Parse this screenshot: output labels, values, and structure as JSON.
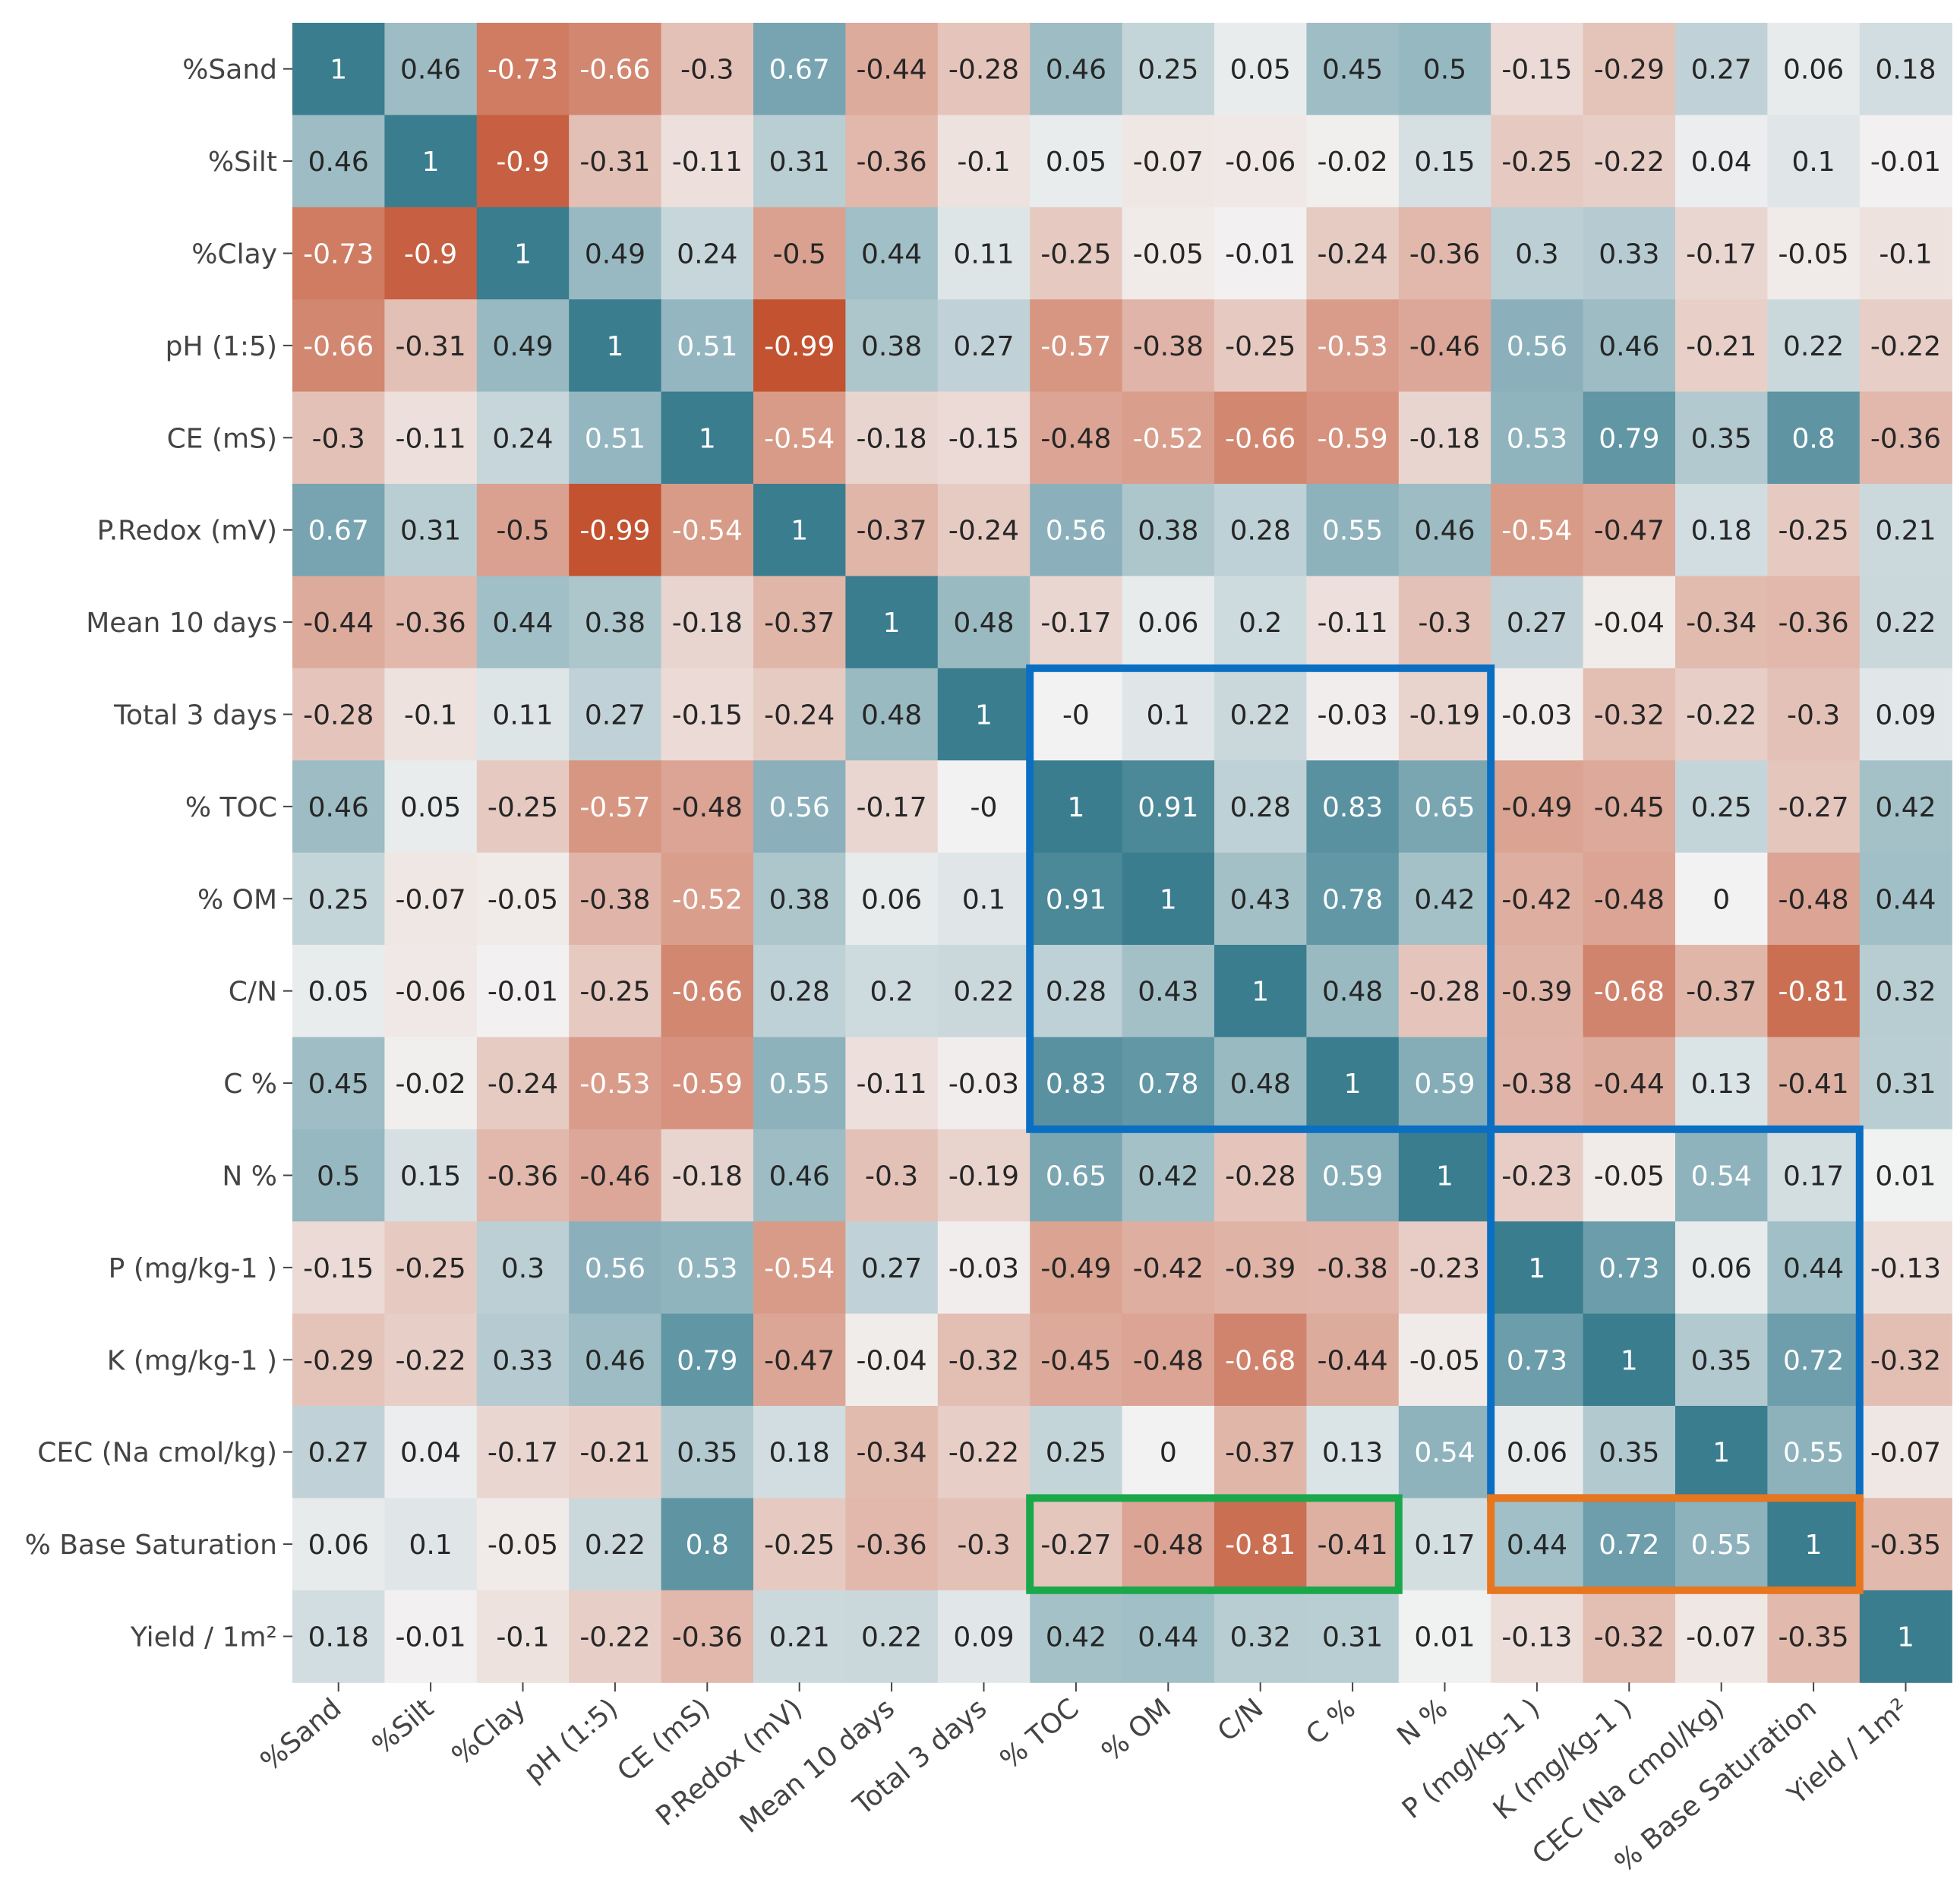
{
  "chart_data": {
    "type": "heatmap",
    "title": "",
    "xlabel": "",
    "ylabel": "",
    "value_range": [
      -1,
      1
    ],
    "colormap": {
      "negative": "#c2502e",
      "neutral": "#f2f2f2",
      "positive": "#3a7d8f"
    },
    "row_labels": [
      "%Sand",
      "%Silt",
      "%Clay",
      "pH (1:5)",
      "CE (mS)",
      "P.Redox (mV)",
      "Mean 10 days",
      "Total 3 days",
      "% TOC",
      "% OM",
      "C/N",
      "C %",
      "N %",
      "P (mg/kg-1 )",
      "K (mg/kg-1 )",
      "CEC (Na cmol/kg)",
      "% Base Saturation",
      "Yield / 1m²"
    ],
    "col_labels": [
      "%Sand",
      "%Silt",
      "%Clay",
      "pH (1:5)",
      "CE (mS)",
      "P.Redox (mV)",
      "Mean 10 days",
      "Total 3 days",
      "% TOC",
      "% OM",
      "C/N",
      "C %",
      "N %",
      "P (mg/kg-1 )",
      "K (mg/kg-1 )",
      "CEC (Na cmol/kg)",
      "% Base Saturation",
      "Yield / 1m²"
    ],
    "values": [
      [
        1,
        0.46,
        -0.73,
        -0.66,
        -0.3,
        0.67,
        -0.44,
        -0.28,
        0.46,
        0.25,
        0.05,
        0.45,
        0.5,
        -0.15,
        -0.29,
        0.27,
        0.06,
        0.18
      ],
      [
        0.46,
        1,
        -0.9,
        -0.31,
        -0.11,
        0.31,
        -0.36,
        -0.1,
        0.05,
        -0.07,
        -0.06,
        -0.02,
        0.15,
        -0.25,
        -0.22,
        0.04,
        0.1,
        -0.01
      ],
      [
        -0.73,
        -0.9,
        1,
        0.49,
        0.24,
        -0.5,
        0.44,
        0.11,
        -0.25,
        -0.05,
        -0.01,
        -0.24,
        -0.36,
        0.3,
        0.33,
        -0.17,
        -0.05,
        -0.1
      ],
      [
        -0.66,
        -0.31,
        0.49,
        1,
        0.51,
        -0.99,
        0.38,
        0.27,
        -0.57,
        -0.38,
        -0.25,
        -0.53,
        -0.46,
        0.56,
        0.46,
        -0.21,
        0.22,
        -0.22
      ],
      [
        -0.3,
        -0.11,
        0.24,
        0.51,
        1,
        -0.54,
        -0.18,
        -0.15,
        -0.48,
        -0.52,
        -0.66,
        -0.59,
        -0.18,
        0.53,
        0.79,
        0.35,
        0.8,
        -0.36
      ],
      [
        0.67,
        0.31,
        -0.5,
        -0.99,
        -0.54,
        1,
        -0.37,
        -0.24,
        0.56,
        0.38,
        0.28,
        0.55,
        0.46,
        -0.54,
        -0.47,
        0.18,
        -0.25,
        0.21
      ],
      [
        -0.44,
        -0.36,
        0.44,
        0.38,
        -0.18,
        -0.37,
        1,
        0.48,
        -0.17,
        0.06,
        0.2,
        -0.11,
        -0.3,
        0.27,
        -0.04,
        -0.34,
        -0.36,
        0.22
      ],
      [
        -0.28,
        -0.1,
        0.11,
        0.27,
        -0.15,
        -0.24,
        0.48,
        1,
        "-0",
        0.1,
        0.22,
        -0.03,
        -0.19,
        -0.03,
        -0.32,
        -0.22,
        -0.3,
        0.09
      ],
      [
        0.46,
        0.05,
        -0.25,
        -0.57,
        -0.48,
        0.56,
        -0.17,
        "-0",
        1,
        0.91,
        0.28,
        0.83,
        0.65,
        -0.49,
        -0.45,
        0.25,
        -0.27,
        0.42
      ],
      [
        0.25,
        -0.07,
        -0.05,
        -0.38,
        -0.52,
        0.38,
        0.06,
        0.1,
        0.91,
        1,
        0.43,
        0.78,
        0.42,
        -0.42,
        -0.48,
        0,
        -0.48,
        0.44
      ],
      [
        0.05,
        -0.06,
        -0.01,
        -0.25,
        -0.66,
        0.28,
        0.2,
        0.22,
        0.28,
        0.43,
        1,
        0.48,
        -0.28,
        -0.39,
        -0.68,
        -0.37,
        -0.81,
        0.32
      ],
      [
        0.45,
        -0.02,
        -0.24,
        -0.53,
        -0.59,
        0.55,
        -0.11,
        -0.03,
        0.83,
        0.78,
        0.48,
        1,
        0.59,
        -0.38,
        -0.44,
        0.13,
        -0.41,
        0.31
      ],
      [
        0.5,
        0.15,
        -0.36,
        -0.46,
        -0.18,
        0.46,
        -0.3,
        -0.19,
        0.65,
        0.42,
        -0.28,
        0.59,
        1,
        -0.23,
        -0.05,
        0.54,
        0.17,
        0.01
      ],
      [
        -0.15,
        -0.25,
        0.3,
        0.56,
        0.53,
        -0.54,
        0.27,
        -0.03,
        -0.49,
        -0.42,
        -0.39,
        -0.38,
        -0.23,
        1,
        0.73,
        0.06,
        0.44,
        -0.13
      ],
      [
        -0.29,
        -0.22,
        0.33,
        0.46,
        0.79,
        -0.47,
        -0.04,
        -0.32,
        -0.45,
        -0.48,
        -0.68,
        -0.44,
        -0.05,
        0.73,
        1,
        0.35,
        0.72,
        -0.32
      ],
      [
        0.27,
        0.04,
        -0.17,
        -0.21,
        0.35,
        0.18,
        -0.34,
        -0.22,
        0.25,
        0,
        -0.37,
        0.13,
        0.54,
        0.06,
        0.35,
        1,
        0.55,
        -0.07
      ],
      [
        0.06,
        0.1,
        -0.05,
        0.22,
        0.8,
        -0.25,
        -0.36,
        -0.3,
        -0.27,
        -0.48,
        -0.81,
        -0.41,
        0.17,
        0.44,
        0.72,
        0.55,
        1,
        -0.35
      ],
      [
        0.18,
        -0.01,
        -0.1,
        -0.22,
        -0.36,
        0.21,
        0.22,
        0.09,
        0.42,
        0.44,
        0.32,
        0.31,
        0.01,
        -0.13,
        -0.32,
        -0.07,
        -0.35,
        1
      ]
    ],
    "highlights": [
      {
        "name": "blue-box-carbon",
        "color": "#0a6fc2",
        "row_start": 7,
        "row_end": 11,
        "col_start": 8,
        "col_end": 12
      },
      {
        "name": "blue-box-nutrients",
        "color": "#0a6fc2",
        "row_start": 12,
        "row_end": 15,
        "col_start": 13,
        "col_end": 16
      },
      {
        "name": "green-box-base-saturation",
        "color": "#1aa84a",
        "row_start": 16,
        "row_end": 16,
        "col_start": 8,
        "col_end": 11
      },
      {
        "name": "orange-box-base-saturation",
        "color": "#e8761e",
        "row_start": 16,
        "row_end": 16,
        "col_start": 13,
        "col_end": 16
      }
    ]
  }
}
